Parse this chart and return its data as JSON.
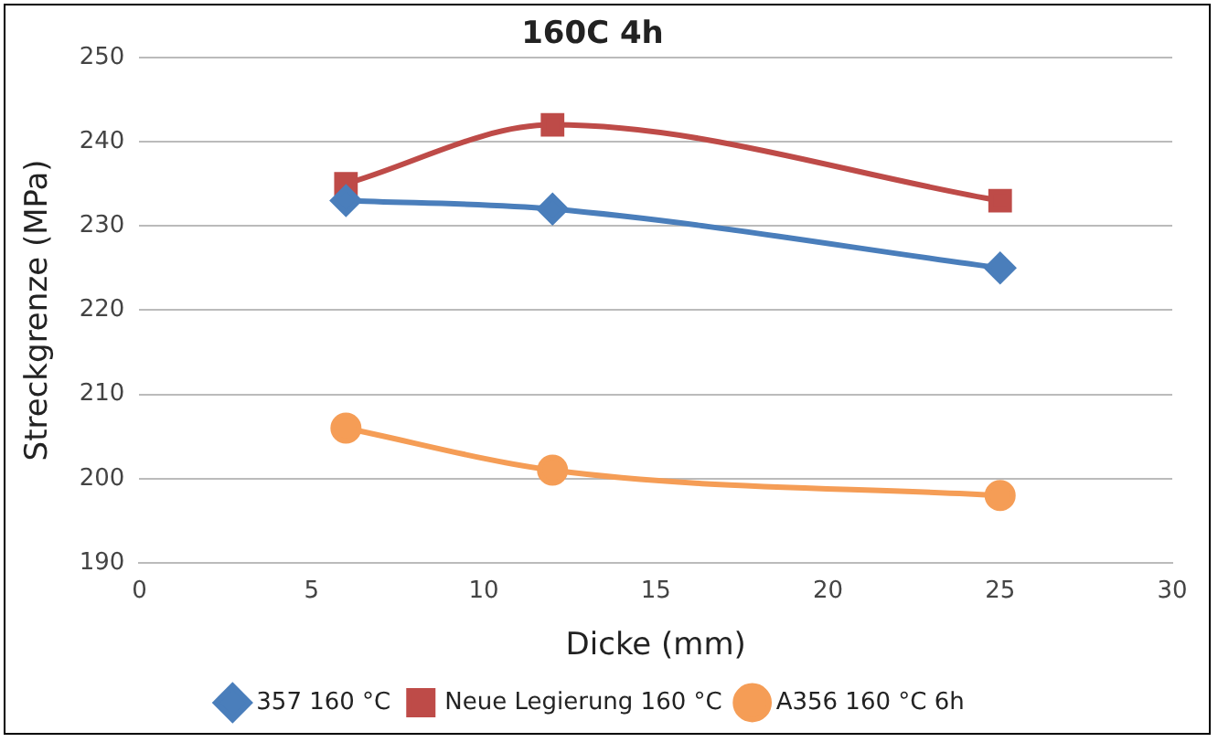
{
  "chart_data": {
    "type": "line",
    "title": "160C 4h",
    "xlabel": "Dicke (mm)",
    "ylabel": "Streckgrenze (MPa)",
    "xlim": [
      0,
      30
    ],
    "xticks": [
      0,
      5,
      10,
      15,
      20,
      25,
      30
    ],
    "ylim": [
      190,
      250
    ],
    "yticks": [
      190,
      200,
      210,
      220,
      230,
      240,
      250
    ],
    "grid": "y",
    "legend": "bottom",
    "series": [
      {
        "name": "357 160 °C",
        "color": "#4a7ebb",
        "marker": "diamond",
        "x": [
          6,
          12,
          25
        ],
        "values": [
          233,
          232,
          225
        ]
      },
      {
        "name": "Neue Legierung 160 °C",
        "color": "#be4b48",
        "marker": "square",
        "x": [
          6,
          12,
          25
        ],
        "values": [
          235,
          242,
          233
        ]
      },
      {
        "name": "A356 160 °C 6h",
        "color": "#f59d56",
        "marker": "circle",
        "x": [
          6,
          12,
          25
        ],
        "values": [
          206,
          201,
          198
        ]
      }
    ]
  }
}
